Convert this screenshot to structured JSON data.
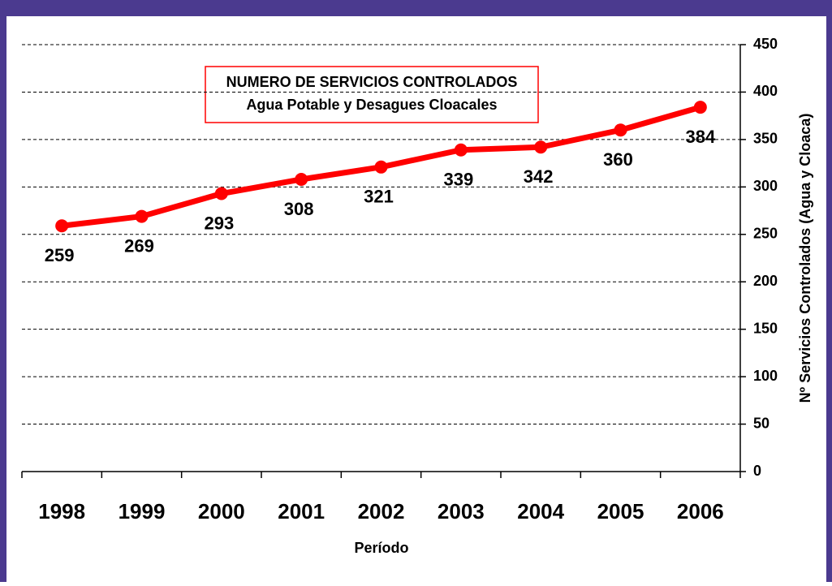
{
  "chart_data": {
    "type": "line",
    "title": "NUMERO DE SERVICIOS CONTROLADOS",
    "subtitle": "Agua Potable y Desagues Cloacales",
    "x_label": "Período",
    "y_label": "Nº Servicios Controlados (Agua y Cloaca)",
    "categories": [
      "1998",
      "1999",
      "2000",
      "2001",
      "2002",
      "2003",
      "2004",
      "2005",
      "2006"
    ],
    "series": [
      {
        "name": "Servicios",
        "color": "#ff0000",
        "values": [
          259,
          269,
          293,
          308,
          321,
          339,
          342,
          360,
          384
        ]
      }
    ],
    "ylim": [
      0,
      450
    ],
    "yticks": [
      0,
      50,
      100,
      150,
      200,
      250,
      300,
      350,
      400,
      450
    ],
    "grid": true,
    "y_axis_side": "right"
  }
}
